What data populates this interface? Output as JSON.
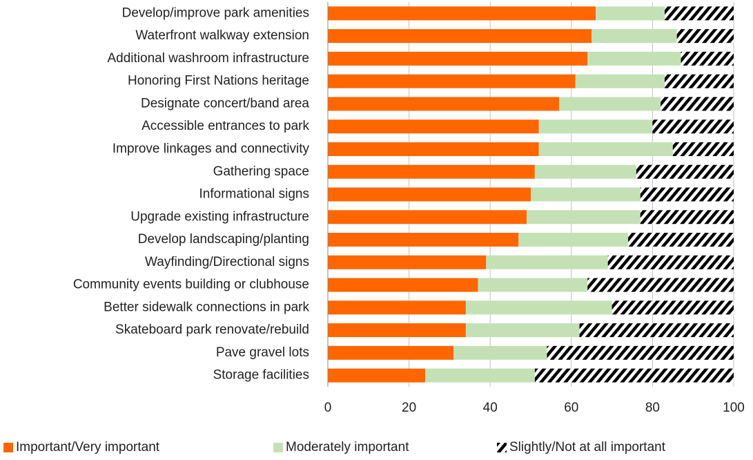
{
  "chart_data": {
    "type": "stacked-bar-horizontal",
    "categories": [
      "Develop/improve park amenities",
      "Waterfront walkway extension",
      "Additional washroom infrastructure",
      "Honoring First Nations heritage",
      "Designate concert/band area",
      "Accessible entrances to park",
      "Improve linkages and connectivity",
      "Gathering space",
      "Informational signs",
      "Upgrade existing infrastructure",
      "Develop landscaping/planting",
      "Wayfinding/Directional signs",
      "Community events building or clubhouse",
      "Better sidewalk connections in park",
      "Skateboard park renovate/rebuild",
      "Pave gravel lots",
      "Storage facilities"
    ],
    "series": [
      {
        "name": "Important/Very important",
        "color": "#ff6600",
        "values": [
          66,
          65,
          64,
          61,
          57,
          52,
          52,
          51,
          50,
          49,
          47,
          39,
          37,
          34,
          34,
          31,
          24
        ]
      },
      {
        "name": "Moderately important",
        "color": "#c4e1b5",
        "values": [
          17,
          21,
          23,
          22,
          25,
          28,
          33,
          25,
          27,
          28,
          27,
          30,
          27,
          36,
          28,
          23,
          27
        ]
      },
      {
        "name": "Slightly/Not at all important",
        "color": "#000000",
        "pattern": "hatch",
        "values": [
          17,
          14,
          13,
          17,
          18,
          20,
          15,
          24,
          23,
          23,
          26,
          31,
          36,
          30,
          38,
          46,
          49
        ]
      }
    ],
    "xlim": [
      0,
      100
    ],
    "xticks": [
      0,
      20,
      40,
      60,
      80,
      100
    ],
    "grid": true,
    "legend": "bottom"
  }
}
